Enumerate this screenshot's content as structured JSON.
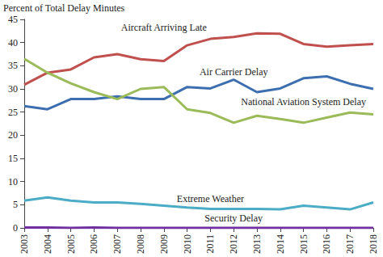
{
  "chart_data": {
    "type": "line",
    "y_label": "Percent of Total Delay Minutes",
    "categories": [
      "2003",
      "2004",
      "2005",
      "2006",
      "2007",
      "2008",
      "2009",
      "2010",
      "2011",
      "2012",
      "2013",
      "2014",
      "2015",
      "2016",
      "2017",
      "2018"
    ],
    "series": [
      {
        "name": "Aircraft Arriving Late",
        "color": "#c0504d",
        "values": [
          30.9,
          33.5,
          34.2,
          36.8,
          37.5,
          36.4,
          36.0,
          39.4,
          40.8,
          41.2,
          42.0,
          41.9,
          39.7,
          39.1,
          39.4,
          39.7
        ]
      },
      {
        "name": "Air Carrier Delay",
        "color": "#3d6fb0",
        "values": [
          26.3,
          25.6,
          27.8,
          27.8,
          28.4,
          27.8,
          27.8,
          30.4,
          30.1,
          32.0,
          29.3,
          30.1,
          32.3,
          32.7,
          31.1,
          30.0
        ]
      },
      {
        "name": "National Aviation System Delay",
        "color": "#9bbb59",
        "values": [
          36.5,
          33.5,
          31.2,
          29.3,
          27.8,
          30.0,
          30.4,
          25.6,
          24.8,
          22.7,
          24.2,
          23.5,
          22.7,
          23.8,
          24.9,
          24.5
        ]
      },
      {
        "name": "Extreme Weather",
        "color": "#4bacc6",
        "values": [
          5.9,
          6.6,
          5.9,
          5.5,
          5.5,
          5.2,
          4.8,
          4.4,
          4.1,
          4.1,
          4.1,
          4.0,
          4.8,
          4.4,
          4.0,
          5.5
        ]
      },
      {
        "name": "Security Delay",
        "color": "#7030a0",
        "values": [
          0.1,
          0.1,
          0.0,
          0.1,
          0.0,
          0.0,
          0.0,
          0.0,
          0.0,
          0.0,
          0.0,
          0.0,
          0.0,
          0.0,
          0.0,
          0.0
        ]
      }
    ],
    "ylim": [
      0,
      45
    ],
    "yticks": [
      0,
      5,
      10,
      15,
      20,
      25,
      30,
      35,
      40,
      45
    ],
    "grid": false
  }
}
